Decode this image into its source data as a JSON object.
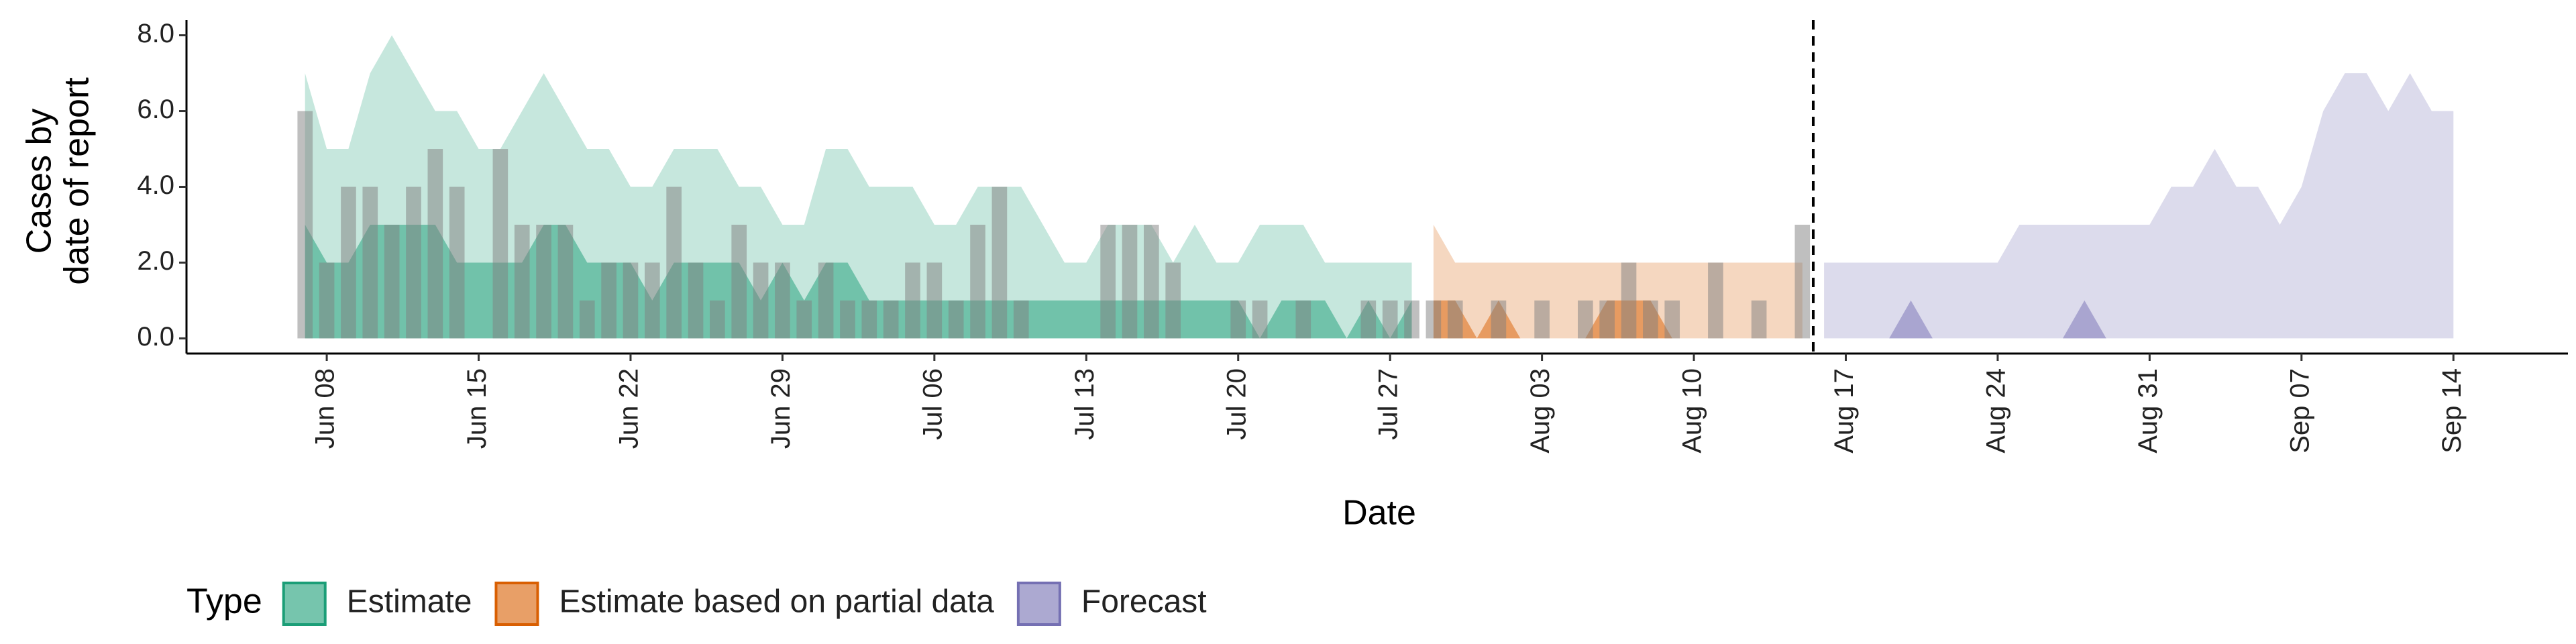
{
  "chart_data": {
    "type": "ribbon",
    "xlabel": "Date",
    "ylabel": [
      "Cases by",
      "date of report"
    ],
    "legend_title": "Type",
    "legend_position": "bottom",
    "xlim": [
      "Jun 02",
      "Sep 19"
    ],
    "xticks": [
      "Jun 08",
      "Jun 15",
      "Jun 22",
      "Jun 29",
      "Jul 06",
      "Jul 13",
      "Jul 20",
      "Jul 27",
      "Aug 03",
      "Aug 10",
      "Aug 17",
      "Aug 24",
      "Aug 31",
      "Sep 07",
      "Sep 14"
    ],
    "ylim": [
      -0.4,
      8.4
    ],
    "yticks": [
      {
        "value": 0,
        "label": "0.0"
      },
      {
        "value": 2,
        "label": "2.0"
      },
      {
        "value": 4,
        "label": "4.0"
      },
      {
        "value": 6,
        "label": "6.0"
      },
      {
        "value": 8,
        "label": "8.0"
      }
    ],
    "bars": {
      "color": "#808080",
      "x": [
        "Jun 07",
        "Jun 08",
        "Jun 09",
        "Jun 10",
        "Jun 11",
        "Jun 12",
        "Jun 13",
        "Jun 14",
        "Jun 15",
        "Jun 16",
        "Jun 17",
        "Jun 18",
        "Jun 19",
        "Jun 20",
        "Jun 21",
        "Jun 22",
        "Jun 23",
        "Jun 24",
        "Jun 25",
        "Jun 26",
        "Jun 27",
        "Jun 28",
        "Jun 29",
        "Jun 30",
        "Jul 01",
        "Jul 02",
        "Jul 03",
        "Jul 04",
        "Jul 05",
        "Jul 06",
        "Jul 07",
        "Jul 08",
        "Jul 09",
        "Jul 10",
        "Jul 11",
        "Jul 12",
        "Jul 13",
        "Jul 14",
        "Jul 15",
        "Jul 16",
        "Jul 17",
        "Jul 18",
        "Jul 19",
        "Jul 20",
        "Jul 21",
        "Jul 22",
        "Jul 23",
        "Jul 24",
        "Jul 25",
        "Jul 26",
        "Jul 27",
        "Jul 28",
        "Jul 29",
        "Jul 30",
        "Jul 31",
        "Aug 01",
        "Aug 02",
        "Aug 03",
        "Aug 04",
        "Aug 05",
        "Aug 06",
        "Aug 07",
        "Aug 08",
        "Aug 09",
        "Aug 10",
        "Aug 11",
        "Aug 12",
        "Aug 13",
        "Aug 14",
        "Aug 15"
      ],
      "values": [
        6,
        2,
        4,
        4,
        3,
        4,
        5,
        4,
        0,
        5,
        3,
        3,
        3,
        1,
        2,
        2,
        2,
        4,
        2,
        1,
        3,
        2,
        2,
        1,
        2,
        1,
        1,
        1,
        2,
        2,
        1,
        3,
        4,
        1,
        0,
        0,
        0,
        3,
        3,
        3,
        2,
        0,
        0,
        1,
        1,
        0,
        1,
        0,
        0,
        1,
        1,
        1,
        1,
        1,
        0,
        1,
        0,
        1,
        0,
        1,
        1,
        2,
        1,
        1,
        0,
        2,
        0,
        1,
        0,
        3
      ]
    },
    "series": [
      {
        "name": "Estimate",
        "color": "#1b9e77",
        "x": [
          "Jun 07",
          "Jun 08",
          "Jun 09",
          "Jun 10",
          "Jun 11",
          "Jun 12",
          "Jun 13",
          "Jun 14",
          "Jun 15",
          "Jun 16",
          "Jun 17",
          "Jun 18",
          "Jun 19",
          "Jun 20",
          "Jun 21",
          "Jun 22",
          "Jun 23",
          "Jun 24",
          "Jun 25",
          "Jun 26",
          "Jun 27",
          "Jun 28",
          "Jun 29",
          "Jun 30",
          "Jul 01",
          "Jul 02",
          "Jul 03",
          "Jul 04",
          "Jul 05",
          "Jul 06",
          "Jul 07",
          "Jul 08",
          "Jul 09",
          "Jul 10",
          "Jul 11",
          "Jul 12",
          "Jul 13",
          "Jul 14",
          "Jul 15",
          "Jul 16",
          "Jul 17",
          "Jul 18",
          "Jul 19",
          "Jul 20",
          "Jul 21",
          "Jul 22",
          "Jul 23",
          "Jul 24",
          "Jul 25",
          "Jul 26",
          "Jul 27",
          "Jul 28"
        ],
        "lower": [
          0,
          0,
          0,
          0,
          0,
          0,
          0,
          0,
          0,
          0,
          0,
          0,
          0,
          0,
          0,
          0,
          0,
          0,
          0,
          0,
          0,
          0,
          0,
          0,
          0,
          0,
          0,
          0,
          0,
          0,
          0,
          0,
          0,
          0,
          0,
          0,
          0,
          0,
          0,
          0,
          0,
          0,
          0,
          0,
          0,
          0,
          0,
          0,
          0,
          0,
          0,
          0
        ],
        "inner": [
          3,
          2,
          2,
          3,
          3,
          3,
          3,
          2,
          2,
          2,
          2,
          3,
          3,
          2,
          2,
          2,
          1,
          2,
          2,
          2,
          2,
          1,
          2,
          1,
          2,
          2,
          1,
          1,
          1,
          1,
          1,
          1,
          1,
          1,
          1,
          1,
          1,
          1,
          1,
          1,
          1,
          1,
          1,
          1,
          0,
          1,
          1,
          1,
          0,
          1,
          0,
          1
        ],
        "outer": [
          7,
          5,
          5,
          7,
          8,
          7,
          6,
          6,
          5,
          5,
          6,
          7,
          6,
          5,
          5,
          4,
          4,
          5,
          5,
          5,
          4,
          4,
          3,
          3,
          5,
          5,
          4,
          4,
          4,
          3,
          3,
          4,
          4,
          4,
          3,
          2,
          2,
          3,
          3,
          3,
          2,
          3,
          2,
          2,
          3,
          3,
          3,
          2,
          2,
          2,
          2,
          2
        ]
      },
      {
        "name": "Estimate based on partial data",
        "color": "#d95f02",
        "x": [
          "Jul 29",
          "Jul 30",
          "Jul 31",
          "Aug 01",
          "Aug 02",
          "Aug 03",
          "Aug 04",
          "Aug 05",
          "Aug 06",
          "Aug 07",
          "Aug 08",
          "Aug 09",
          "Aug 10",
          "Aug 11",
          "Aug 12",
          "Aug 13",
          "Aug 14",
          "Aug 15"
        ],
        "lower": [
          0,
          0,
          0,
          0,
          0,
          0,
          0,
          0,
          0,
          0,
          0,
          0,
          0,
          0,
          0,
          0,
          0,
          0
        ],
        "inner": [
          1,
          1,
          0,
          1,
          0,
          0,
          0,
          0,
          1,
          1,
          1,
          0,
          0,
          0,
          0,
          0,
          0,
          0
        ],
        "outer": [
          3,
          2,
          2,
          2,
          2,
          2,
          2,
          2,
          2,
          2,
          2,
          2,
          2,
          2,
          2,
          2,
          2,
          2
        ]
      },
      {
        "name": "Forecast",
        "color": "#7570b3",
        "x": [
          "Aug 16",
          "Aug 17",
          "Aug 18",
          "Aug 19",
          "Aug 20",
          "Aug 21",
          "Aug 22",
          "Aug 23",
          "Aug 24",
          "Aug 25",
          "Aug 26",
          "Aug 27",
          "Aug 28",
          "Aug 29",
          "Aug 30",
          "Aug 31",
          "Sep 01",
          "Sep 02",
          "Sep 03",
          "Sep 04",
          "Sep 05",
          "Sep 06",
          "Sep 07",
          "Sep 08",
          "Sep 09",
          "Sep 10",
          "Sep 11",
          "Sep 12",
          "Sep 13",
          "Sep 14"
        ],
        "lower": [
          0,
          0,
          0,
          0,
          0,
          0,
          0,
          0,
          0,
          0,
          0,
          0,
          0,
          0,
          0,
          0,
          0,
          0,
          0,
          0,
          0,
          0,
          0,
          0,
          0,
          0,
          0,
          0,
          0,
          0
        ],
        "inner": [
          0,
          0,
          0,
          0,
          1,
          0,
          0,
          0,
          0,
          0,
          0,
          0,
          1,
          0,
          0,
          0,
          0,
          0,
          0,
          0,
          0,
          0,
          0,
          0,
          0,
          0,
          0,
          0,
          0,
          0
        ],
        "outer": [
          2,
          2,
          2,
          2,
          2,
          2,
          2,
          2,
          2,
          3,
          3,
          3,
          3,
          3,
          3,
          3,
          4,
          4,
          5,
          4,
          4,
          3,
          4,
          6,
          7,
          7,
          6,
          7,
          6,
          6
        ]
      }
    ]
  }
}
